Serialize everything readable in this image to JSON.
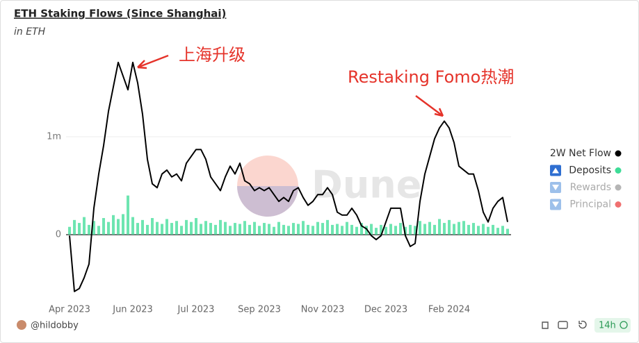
{
  "chart_data": {
    "type": "line",
    "title": "ETH Staking Flows (Since Shanghai)",
    "subtitle": "in ETH",
    "watermark": "Dune",
    "annotations": [
      {
        "text": "上海升级"
      },
      {
        "text": "Restaking Fomo热潮"
      }
    ],
    "categories": [
      "Apr 2023",
      null,
      null,
      null,
      null,
      null,
      null,
      null,
      null,
      null,
      null,
      null,
      null,
      "Jun 2023",
      null,
      null,
      null,
      null,
      null,
      null,
      null,
      null,
      null,
      null,
      null,
      null,
      "Jul 2023",
      null,
      null,
      null,
      null,
      null,
      null,
      null,
      null,
      null,
      null,
      null,
      null,
      "Sep 2023",
      null,
      null,
      null,
      null,
      null,
      null,
      null,
      null,
      null,
      null,
      null,
      null,
      "Nov 2023",
      null,
      null,
      null,
      null,
      null,
      null,
      null,
      null,
      null,
      null,
      null,
      null,
      "Dec 2023",
      null,
      null,
      null,
      null,
      null,
      null,
      null,
      null,
      null,
      null,
      null,
      null,
      "Feb 2024",
      null,
      null,
      null,
      null,
      null,
      null,
      null,
      null,
      null,
      null,
      null,
      null
    ],
    "series": [
      {
        "name": "2W Net Flow",
        "type": "line",
        "color": "#000000",
        "values": [
          -10000,
          -580000,
          -550000,
          -440000,
          -300000,
          270000,
          620000,
          910000,
          1260000,
          1510000,
          1760000,
          1620000,
          1480000,
          1760000,
          1550000,
          1230000,
          770000,
          520000,
          480000,
          620000,
          660000,
          590000,
          620000,
          550000,
          730000,
          800000,
          870000,
          870000,
          770000,
          590000,
          520000,
          450000,
          590000,
          700000,
          620000,
          730000,
          550000,
          520000,
          450000,
          480000,
          450000,
          480000,
          410000,
          340000,
          380000,
          340000,
          450000,
          480000,
          380000,
          300000,
          340000,
          410000,
          410000,
          480000,
          410000,
          230000,
          200000,
          200000,
          270000,
          200000,
          90000,
          60000,
          -10000,
          -50000,
          -10000,
          130000,
          270000,
          270000,
          270000,
          -10000,
          -120000,
          -90000,
          340000,
          620000,
          800000,
          980000,
          1090000,
          1160000,
          1090000,
          940000,
          700000,
          660000,
          620000,
          620000,
          450000,
          230000,
          130000,
          270000,
          340000,
          380000,
          130000
        ]
      },
      {
        "name": "Deposits",
        "type": "bar",
        "color": "#3ddc97",
        "values": [
          80000,
          150000,
          120000,
          180000,
          100000,
          140000,
          90000,
          170000,
          130000,
          200000,
          160000,
          210000,
          400000,
          180000,
          120000,
          150000,
          100000,
          170000,
          130000,
          110000,
          160000,
          120000,
          140000,
          90000,
          150000,
          130000,
          170000,
          110000,
          140000,
          120000,
          100000,
          150000,
          130000,
          90000,
          120000,
          110000,
          140000,
          100000,
          130000,
          90000,
          120000,
          110000,
          80000,
          130000,
          100000,
          90000,
          120000,
          110000,
          140000,
          100000,
          90000,
          130000,
          120000,
          150000,
          100000,
          110000,
          90000,
          130000,
          100000,
          80000,
          120000,
          90000,
          110000,
          70000,
          100000,
          80000,
          110000,
          90000,
          120000,
          80000,
          100000,
          90000,
          140000,
          110000,
          130000,
          100000,
          160000,
          120000,
          150000,
          110000,
          130000,
          140000,
          100000,
          120000,
          90000,
          110000,
          80000,
          100000,
          70000,
          90000,
          60000
        ]
      }
    ],
    "legend_disabled": [
      {
        "name": "Rewards",
        "color": "#b5b5b5"
      },
      {
        "name": "Principal",
        "color": "#f07070"
      }
    ],
    "ylim": [
      -650000,
      1850000
    ],
    "yticks": [
      0,
      {
        "value": 1000000,
        "label": "1m"
      }
    ],
    "grid": true,
    "legend": "right",
    "footer": {
      "author": "@hildobby",
      "refresh": "14h"
    }
  }
}
